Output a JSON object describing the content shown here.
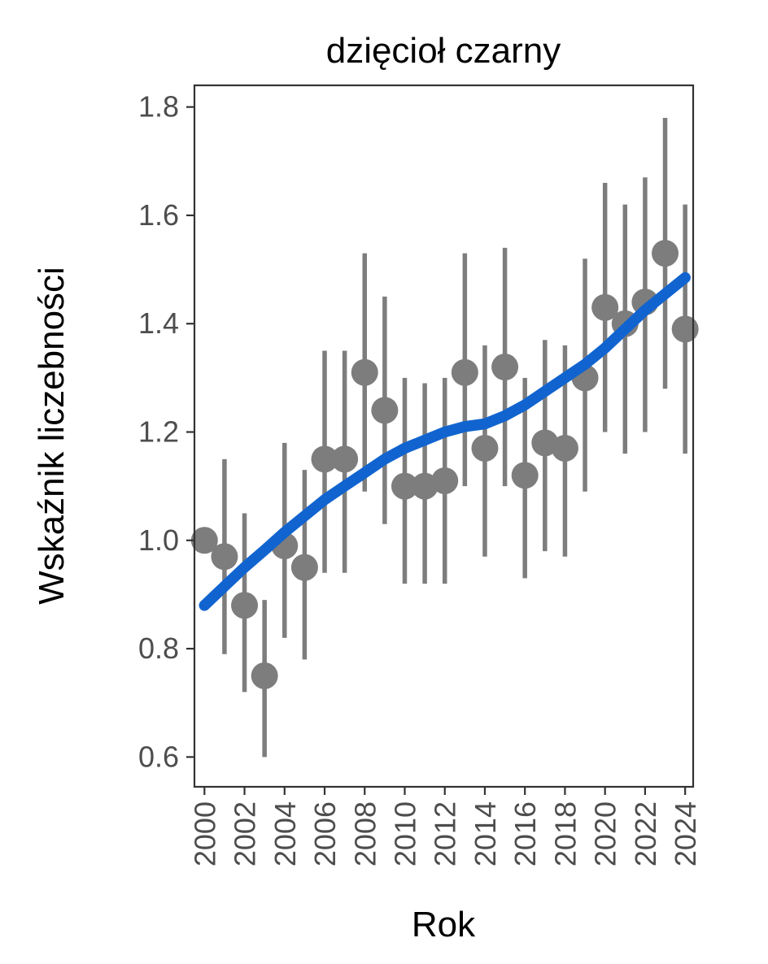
{
  "chart_data": {
    "type": "scatter",
    "subtype": "pointrange-with-smooth-trend",
    "title": "dzięcioł czarny",
    "xlabel": "Rok",
    "ylabel": "Wskaźnik liczebności",
    "grid": "off",
    "legend": "none",
    "x_domain": [
      1999.5,
      2024.4
    ],
    "y_domain": [
      0.545,
      1.84
    ],
    "x_ticks": {
      "values": [
        2000,
        2002,
        2004,
        2006,
        2008,
        2010,
        2012,
        2014,
        2016,
        2018,
        2020,
        2022,
        2024
      ],
      "labels": [
        "2000",
        "2002",
        "2004",
        "2006",
        "2008",
        "2010",
        "2012",
        "2014",
        "2016",
        "2018",
        "2020",
        "2022",
        "2024"
      ],
      "label_rotation_deg": -90
    },
    "y_ticks": {
      "values": [
        0.6,
        0.8,
        1.0,
        1.2,
        1.4,
        1.6,
        1.8
      ],
      "labels": [
        "0.6",
        "0.8",
        "1.0",
        "1.2",
        "1.4",
        "1.6",
        "1.8"
      ]
    },
    "series": [
      {
        "name": "wskaznik-liczebnosci-pointrange",
        "type": "pointrange",
        "color": "#7d7d7d",
        "points": [
          {
            "year": 2000,
            "value": 1.0,
            "lo": null,
            "hi": null
          },
          {
            "year": 2001,
            "value": 0.97,
            "lo": 0.79,
            "hi": 1.15
          },
          {
            "year": 2002,
            "value": 0.88,
            "lo": 0.72,
            "hi": 1.05
          },
          {
            "year": 2003,
            "value": 0.75,
            "lo": 0.6,
            "hi": 0.89
          },
          {
            "year": 2004,
            "value": 0.99,
            "lo": 0.82,
            "hi": 1.18
          },
          {
            "year": 2005,
            "value": 0.95,
            "lo": 0.78,
            "hi": 1.13
          },
          {
            "year": 2006,
            "value": 1.15,
            "lo": 0.94,
            "hi": 1.35
          },
          {
            "year": 2007,
            "value": 1.15,
            "lo": 0.94,
            "hi": 1.35
          },
          {
            "year": 2008,
            "value": 1.31,
            "lo": 1.09,
            "hi": 1.53
          },
          {
            "year": 2009,
            "value": 1.24,
            "lo": 1.03,
            "hi": 1.45
          },
          {
            "year": 2010,
            "value": 1.1,
            "lo": 0.92,
            "hi": 1.3
          },
          {
            "year": 2011,
            "value": 1.1,
            "lo": 0.92,
            "hi": 1.29
          },
          {
            "year": 2012,
            "value": 1.11,
            "lo": 0.92,
            "hi": 1.3
          },
          {
            "year": 2013,
            "value": 1.31,
            "lo": 1.1,
            "hi": 1.53
          },
          {
            "year": 2014,
            "value": 1.17,
            "lo": 0.97,
            "hi": 1.36
          },
          {
            "year": 2015,
            "value": 1.32,
            "lo": 1.1,
            "hi": 1.54
          },
          {
            "year": 2016,
            "value": 1.12,
            "lo": 0.93,
            "hi": 1.3
          },
          {
            "year": 2017,
            "value": 1.18,
            "lo": 0.98,
            "hi": 1.37
          },
          {
            "year": 2018,
            "value": 1.17,
            "lo": 0.97,
            "hi": 1.36
          },
          {
            "year": 2019,
            "value": 1.3,
            "lo": 1.09,
            "hi": 1.52
          },
          {
            "year": 2020,
            "value": 1.43,
            "lo": 1.2,
            "hi": 1.66
          },
          {
            "year": 2021,
            "value": 1.4,
            "lo": 1.16,
            "hi": 1.62
          },
          {
            "year": 2022,
            "value": 1.44,
            "lo": 1.2,
            "hi": 1.67
          },
          {
            "year": 2023,
            "value": 1.53,
            "lo": 1.28,
            "hi": 1.78
          },
          {
            "year": 2024,
            "value": 1.39,
            "lo": 1.16,
            "hi": 1.62
          }
        ]
      },
      {
        "name": "trend-smooth",
        "type": "line",
        "color": "#1164cf",
        "points": [
          {
            "year": 2000,
            "value": 0.88
          },
          {
            "year": 2001,
            "value": 0.915
          },
          {
            "year": 2002,
            "value": 0.95
          },
          {
            "year": 2003,
            "value": 0.982
          },
          {
            "year": 2004,
            "value": 1.015
          },
          {
            "year": 2005,
            "value": 1.045
          },
          {
            "year": 2006,
            "value": 1.075
          },
          {
            "year": 2007,
            "value": 1.1
          },
          {
            "year": 2008,
            "value": 1.125
          },
          {
            "year": 2009,
            "value": 1.15
          },
          {
            "year": 2010,
            "value": 1.17
          },
          {
            "year": 2011,
            "value": 1.185
          },
          {
            "year": 2012,
            "value": 1.2
          },
          {
            "year": 2013,
            "value": 1.21
          },
          {
            "year": 2014,
            "value": 1.215
          },
          {
            "year": 2015,
            "value": 1.23
          },
          {
            "year": 2016,
            "value": 1.25
          },
          {
            "year": 2017,
            "value": 1.275
          },
          {
            "year": 2018,
            "value": 1.3
          },
          {
            "year": 2019,
            "value": 1.325
          },
          {
            "year": 2020,
            "value": 1.355
          },
          {
            "year": 2021,
            "value": 1.39
          },
          {
            "year": 2022,
            "value": 1.425
          },
          {
            "year": 2023,
            "value": 1.455
          },
          {
            "year": 2024,
            "value": 1.485
          }
        ]
      }
    ],
    "colors": {
      "point": "#7d7d7d",
      "error_bar": "#7d7d7d",
      "trend_line": "#1164cf",
      "panel_border": "#333333",
      "tick_mark": "#333333",
      "tick_label": "#4d4d4d",
      "title_text": "#000000",
      "background": "#ffffff"
    }
  }
}
